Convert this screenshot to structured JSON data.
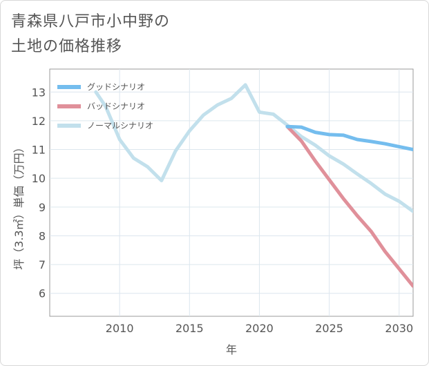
{
  "title": "青森県八戸市小中野の\n土地の価格推移",
  "chart_data": {
    "type": "line",
    "xlabel": "年",
    "ylabel": "坪（3.3㎡）単価（万円）",
    "xlim": [
      2005,
      2031
    ],
    "ylim": [
      5.2,
      13.8
    ],
    "xticks": [
      2010,
      2015,
      2020,
      2025,
      2030
    ],
    "yticks": [
      6,
      7,
      8,
      9,
      10,
      11,
      12,
      13
    ],
    "grid": true,
    "legend_position": "top-left",
    "series": [
      {
        "name": "グッドシナリオ",
        "color": "#74bdee",
        "x": [
          2022,
          2023,
          2024,
          2025,
          2026,
          2027,
          2028,
          2029,
          2030,
          2031
        ],
        "y": [
          11.8,
          11.78,
          11.6,
          11.52,
          11.5,
          11.35,
          11.28,
          11.2,
          11.1,
          11.0
        ]
      },
      {
        "name": "バッドシナリオ",
        "color": "#e0909a",
        "x": [
          2022,
          2023,
          2024,
          2025,
          2026,
          2027,
          2028,
          2029,
          2030,
          2031
        ],
        "y": [
          11.8,
          11.3,
          10.6,
          9.95,
          9.3,
          8.7,
          8.15,
          7.45,
          6.85,
          6.25
        ]
      },
      {
        "name": "ノーマルシナリオ",
        "color": "#c2e0ec",
        "x": [
          2008.3,
          2009,
          2010,
          2011,
          2012,
          2013,
          2014,
          2015,
          2016,
          2017,
          2018,
          2019,
          2020,
          2021,
          2022,
          2023,
          2024,
          2025,
          2026,
          2027,
          2028,
          2029,
          2030,
          2031
        ],
        "y": [
          13.0,
          12.5,
          11.35,
          10.7,
          10.4,
          9.92,
          10.95,
          11.65,
          12.2,
          12.55,
          12.78,
          13.25,
          12.3,
          12.23,
          11.85,
          11.45,
          11.15,
          10.78,
          10.5,
          10.15,
          9.82,
          9.45,
          9.2,
          8.85
        ]
      }
    ]
  }
}
